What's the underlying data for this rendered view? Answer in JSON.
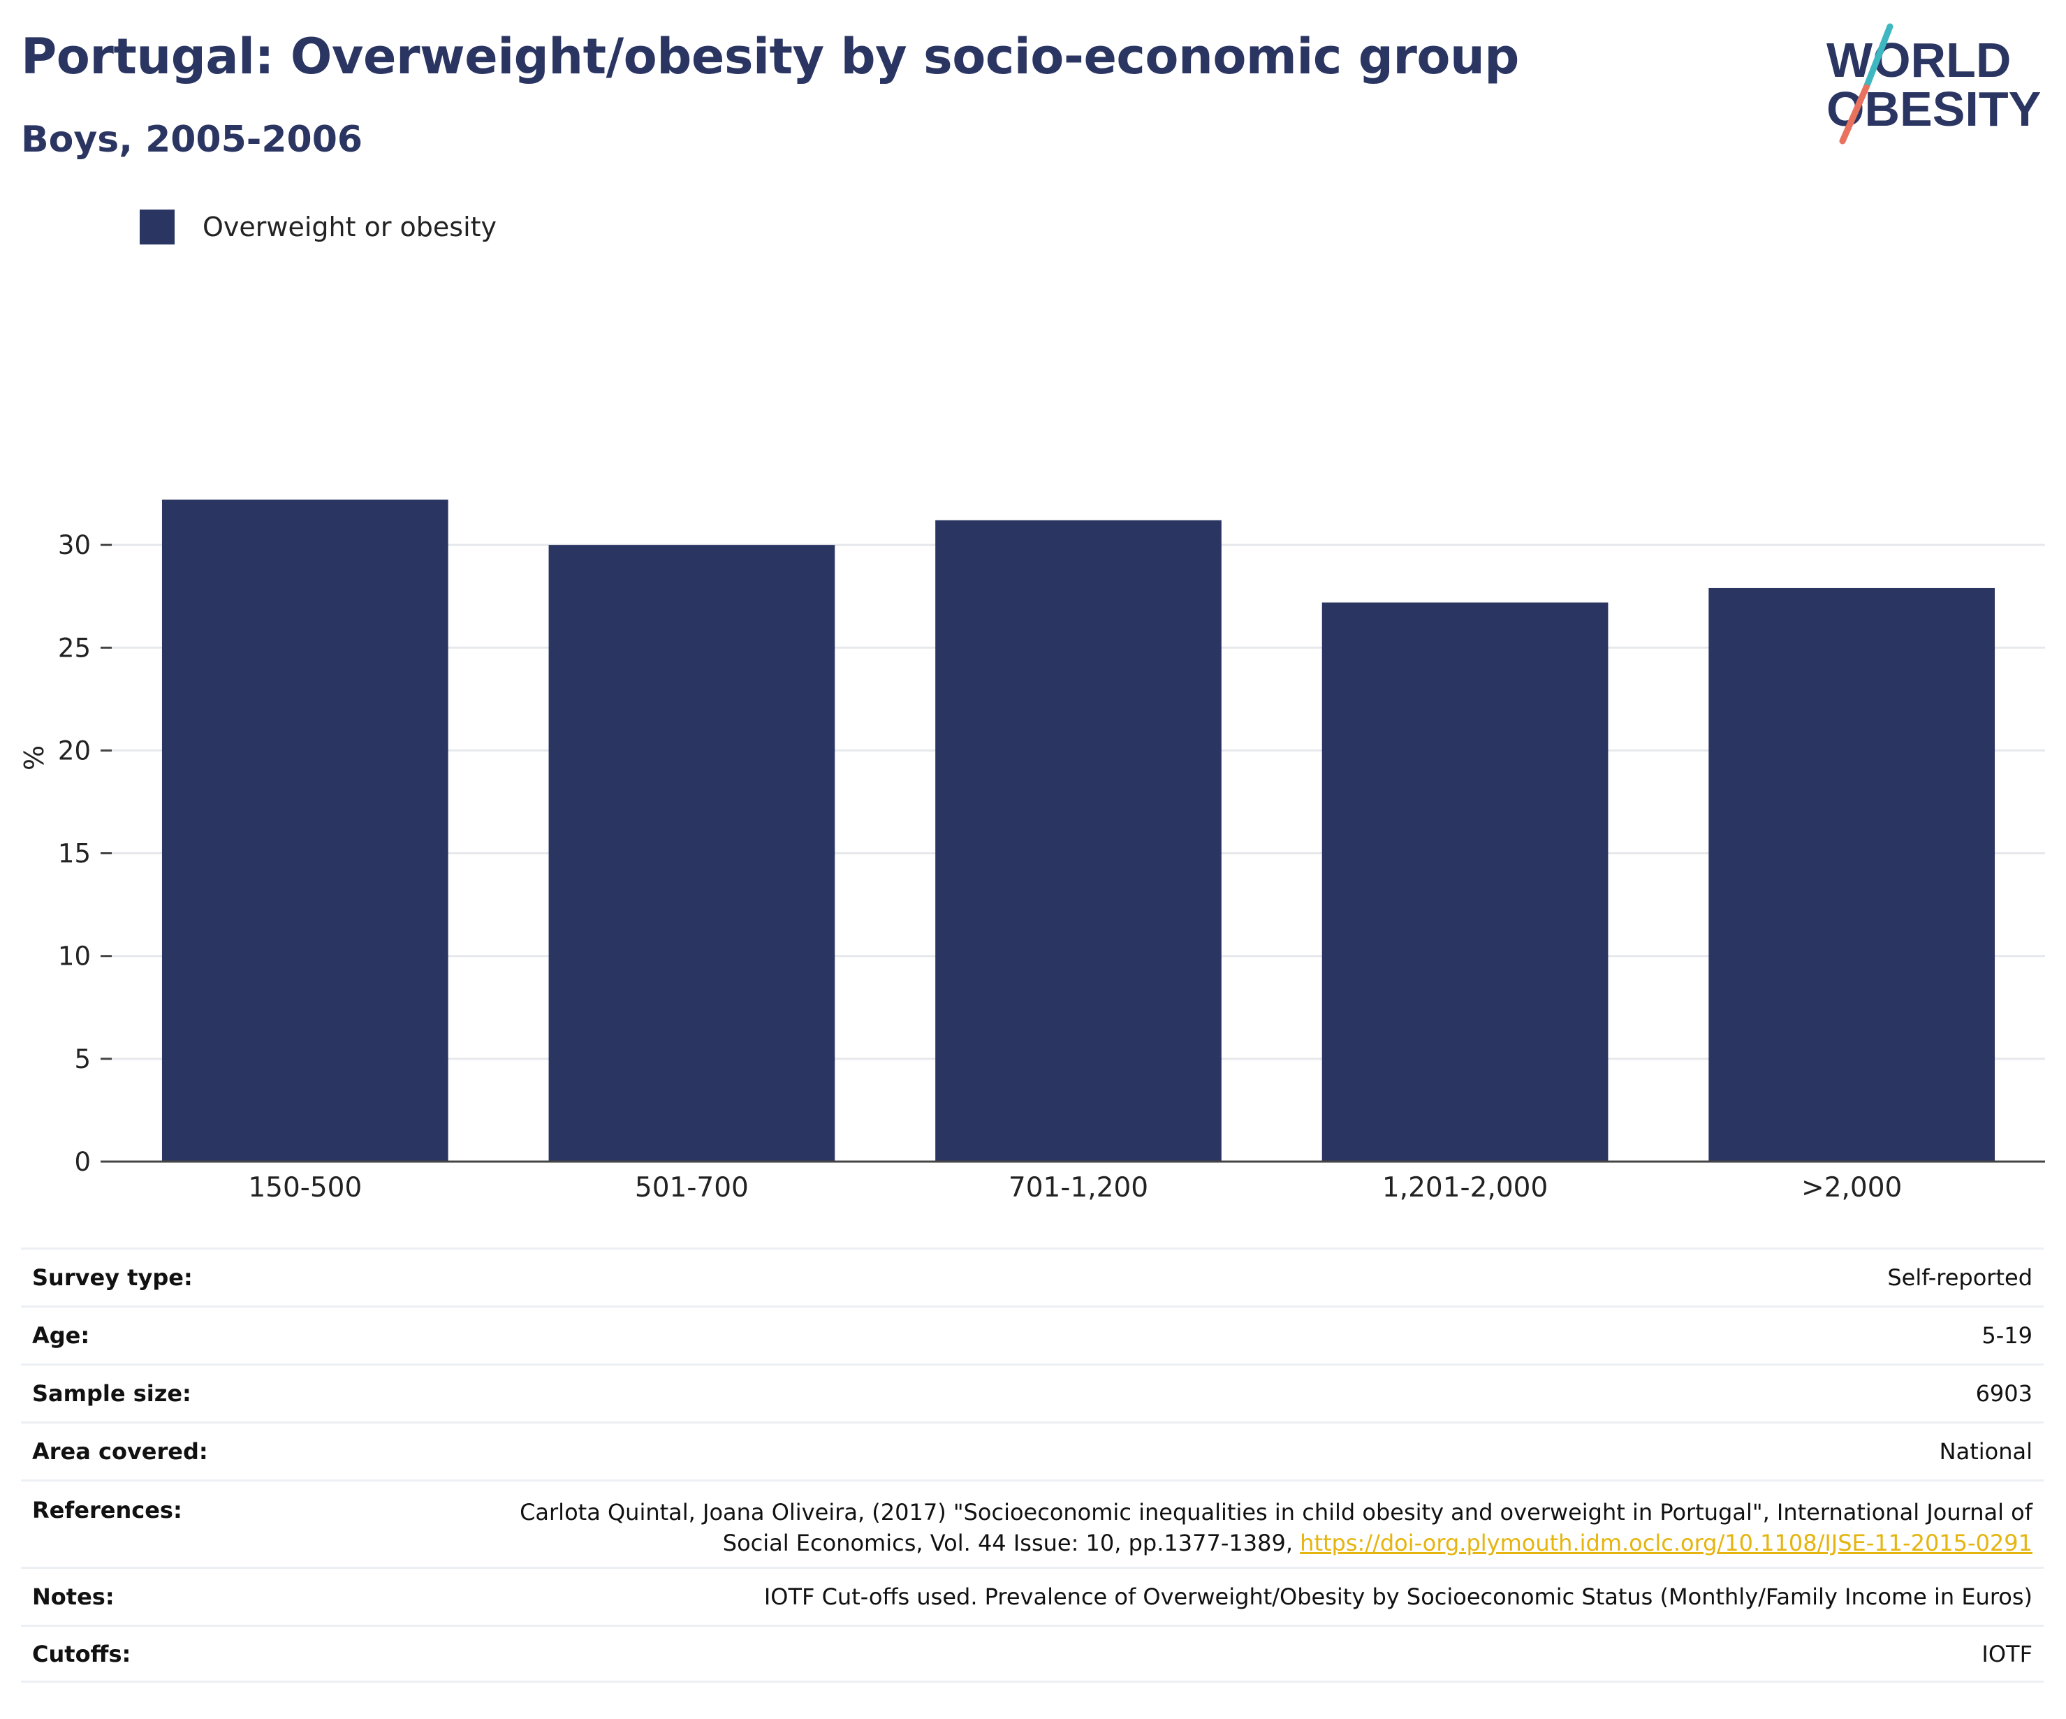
{
  "title": "Portugal: Overweight/obesity by socio-economic group",
  "subtitle": "Boys, 2005-2006",
  "logo": {
    "line1": "WORLD",
    "line2": "OBESITY",
    "colors": {
      "text": "#2b3562",
      "slash_top": "#3fb7c1",
      "slash_bottom": "#e8725d"
    }
  },
  "legend": {
    "label": "Overweight or obesity",
    "color": "#2b3562"
  },
  "chart_data": {
    "type": "bar",
    "categories": [
      "150-500",
      "501-700",
      "701-1,200",
      "1,201-2,000",
      ">2,000"
    ],
    "series": [
      {
        "name": "Overweight or obesity",
        "values": [
          32.2,
          30.0,
          31.2,
          27.2,
          27.9
        ],
        "color": "#2b3562"
      }
    ],
    "ylabel": "%",
    "xlabel": "",
    "ylim": [
      0,
      35
    ],
    "yticks": [
      0,
      5,
      10,
      15,
      20,
      25,
      30
    ],
    "grid": true,
    "legend_position": "top-left"
  },
  "info": {
    "survey_type": {
      "label": "Survey type:",
      "value": "Self-reported"
    },
    "age": {
      "label": "Age:",
      "value": "5-19"
    },
    "sample_size": {
      "label": "Sample size:",
      "value": "6903"
    },
    "area": {
      "label": "Area covered:",
      "value": "National"
    },
    "references": {
      "label": "References:",
      "text_line1": "Carlota Quintal, Joana Oliveira, (2017) \"Socioeconomic inequalities in child obesity and overweight in Portugal\", International Journal of",
      "text_line2": "Social Economics, Vol. 44 Issue: 10, pp.1377-1389,",
      "link": "https://doi-org.plymouth.idm.oclc.org/10.1108/IJSE-11-2015-0291"
    },
    "notes": {
      "label": "Notes:",
      "value": "IOTF Cut-offs used. Prevalence of Overweight/Obesity by Socioeconomic Status (Monthly/Family Income in Euros)"
    },
    "cutoffs": {
      "label": "Cutoffs:",
      "value": "IOTF"
    }
  }
}
